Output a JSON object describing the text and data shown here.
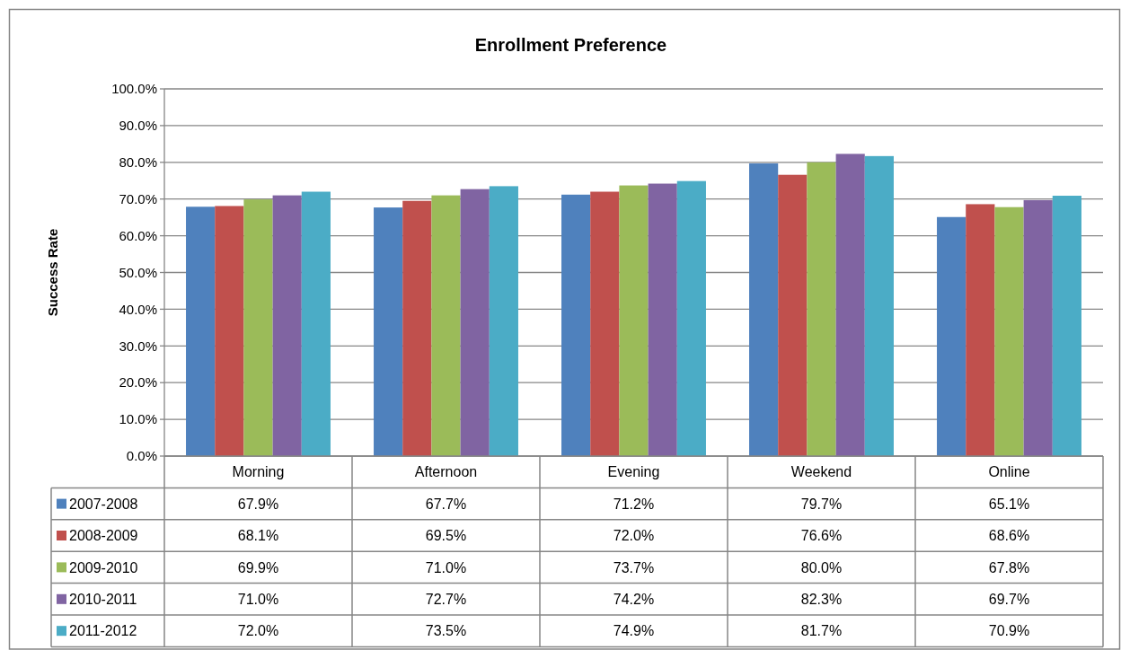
{
  "chart_data": {
    "type": "bar",
    "title": "Enrollment Preference",
    "ylabel": "Success Rate",
    "categories": [
      "Morning",
      "Afternoon",
      "Evening",
      "Weekend",
      "Online"
    ],
    "series": [
      {
        "name": "2007-2008",
        "color": "#4f81bd",
        "values": [
          67.9,
          67.7,
          71.2,
          79.7,
          65.1
        ],
        "value_labels": [
          "67.9%",
          "67.7%",
          "71.2%",
          "79.7%",
          "65.1%"
        ]
      },
      {
        "name": "2008-2009",
        "color": "#c0504d",
        "values": [
          68.1,
          69.5,
          72.0,
          76.6,
          68.6
        ],
        "value_labels": [
          "68.1%",
          "69.5%",
          "72.0%",
          "76.6%",
          "68.6%"
        ]
      },
      {
        "name": "2009-2010",
        "color": "#9bbb59",
        "values": [
          69.9,
          71.0,
          73.7,
          80.0,
          67.8
        ],
        "value_labels": [
          "69.9%",
          "71.0%",
          "73.7%",
          "80.0%",
          "67.8%"
        ]
      },
      {
        "name": "2010-2011",
        "color": "#8064a2",
        "values": [
          71.0,
          72.7,
          74.2,
          82.3,
          69.7
        ],
        "value_labels": [
          "71.0%",
          "72.7%",
          "74.2%",
          "82.3%",
          "69.7%"
        ]
      },
      {
        "name": "2011-2012",
        "color": "#4bacc6",
        "values": [
          72.0,
          73.5,
          74.9,
          81.7,
          70.9
        ],
        "value_labels": [
          "72.0%",
          "73.5%",
          "74.9%",
          "81.7%",
          "70.9%"
        ]
      }
    ],
    "ylim": [
      0,
      100
    ],
    "yticks": [
      {
        "value": 0,
        "label": "0.0%"
      },
      {
        "value": 10,
        "label": "10.0%"
      },
      {
        "value": 20,
        "label": "20.0%"
      },
      {
        "value": 30,
        "label": "30.0%"
      },
      {
        "value": 40,
        "label": "40.0%"
      },
      {
        "value": 50,
        "label": "50.0%"
      },
      {
        "value": 60,
        "label": "60.0%"
      },
      {
        "value": 70,
        "label": "70.0%"
      },
      {
        "value": 80,
        "label": "80.0%"
      },
      {
        "value": 90,
        "label": "90.0%"
      },
      {
        "value": 100,
        "label": "100.0%"
      }
    ],
    "grid": "y",
    "legend": "bottom"
  }
}
